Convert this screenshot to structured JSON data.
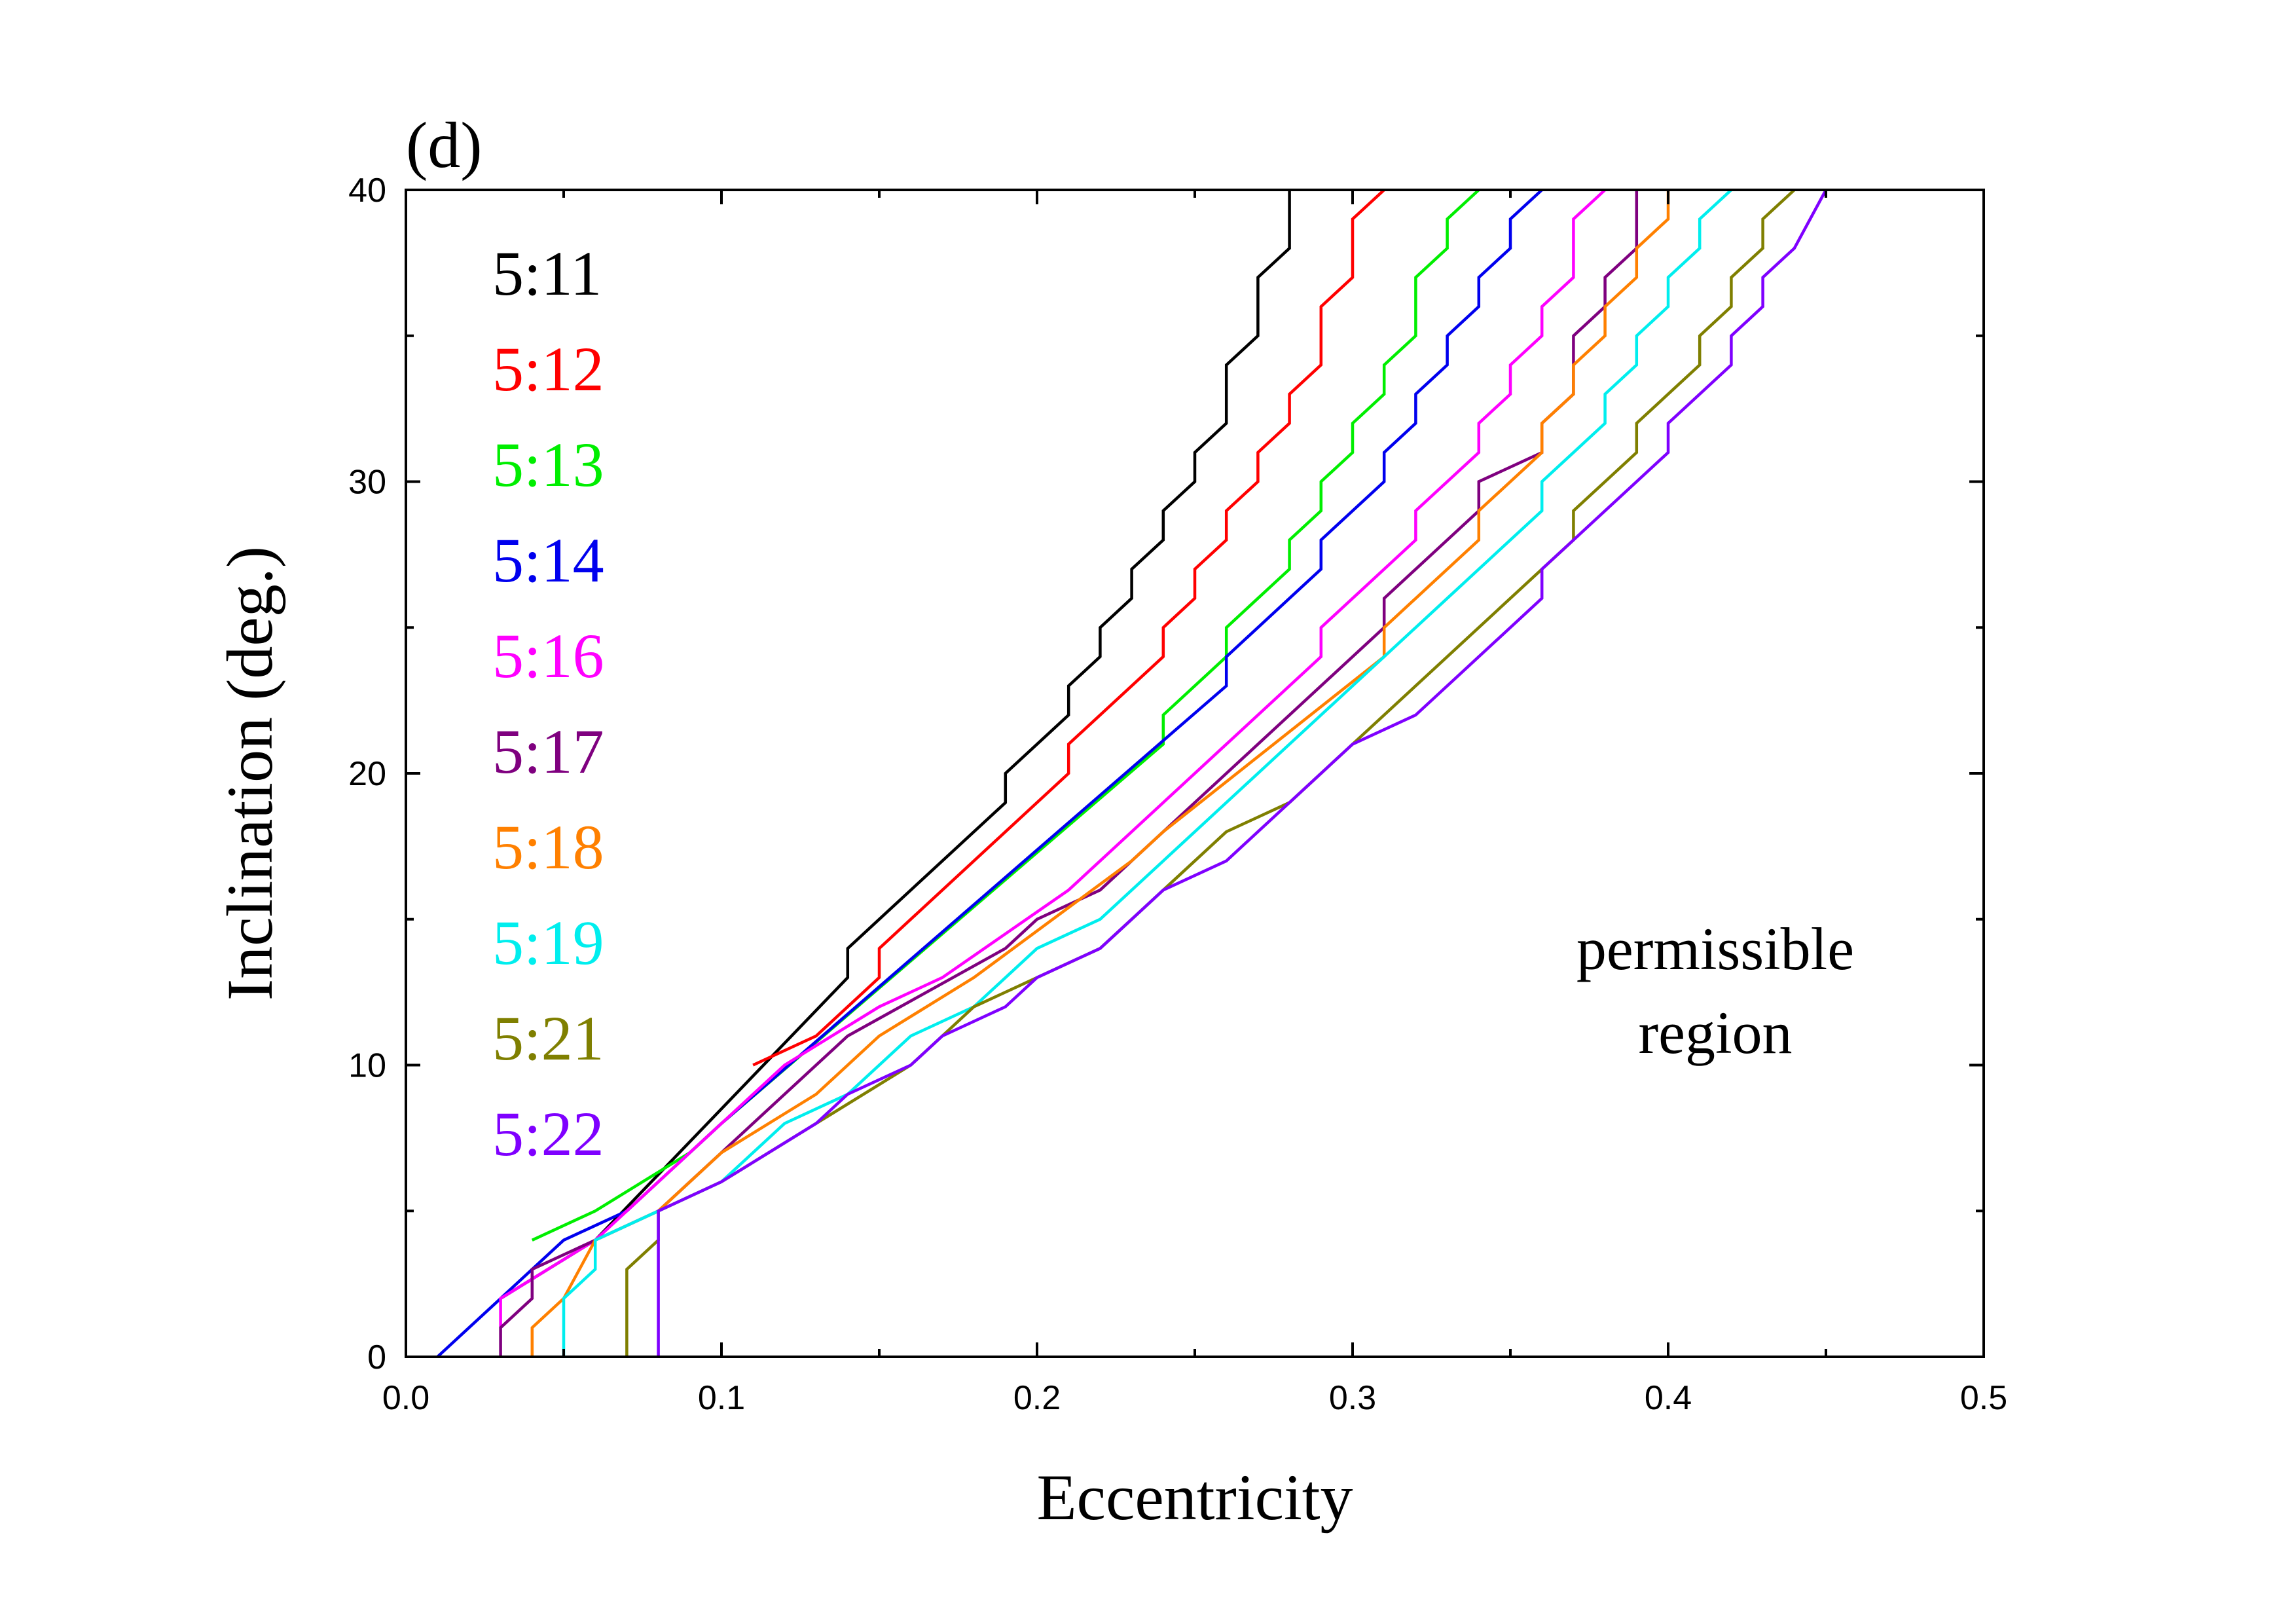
{
  "chart_data": {
    "type": "line",
    "panel_label": "(d)",
    "xlabel": "Eccentricity",
    "ylabel": "Inclination (deg.)",
    "xlim": [
      0.0,
      0.5
    ],
    "ylim": [
      0,
      40
    ],
    "xticks": [
      "0.0",
      "0.1",
      "0.2",
      "0.3",
      "0.4",
      "0.5"
    ],
    "yticks": [
      "0",
      "10",
      "20",
      "30",
      "40"
    ],
    "annotation": [
      "permissible",
      "region"
    ],
    "legend_position": "top-left",
    "series": [
      {
        "name": "5:11",
        "color": "#000000",
        "points": [
          [
            0.03,
            2
          ],
          [
            0.06,
            4
          ],
          [
            0.14,
            13
          ],
          [
            0.14,
            14
          ],
          [
            0.19,
            19
          ],
          [
            0.19,
            20
          ],
          [
            0.21,
            22
          ],
          [
            0.21,
            23
          ],
          [
            0.22,
            24
          ],
          [
            0.22,
            25
          ],
          [
            0.23,
            26
          ],
          [
            0.23,
            27
          ],
          [
            0.24,
            28
          ],
          [
            0.24,
            29
          ],
          [
            0.25,
            30
          ],
          [
            0.25,
            31
          ],
          [
            0.26,
            32
          ],
          [
            0.26,
            34
          ],
          [
            0.27,
            35
          ],
          [
            0.27,
            37
          ],
          [
            0.28,
            38
          ],
          [
            0.28,
            40
          ]
        ]
      },
      {
        "name": "5:12",
        "color": "#ff0000",
        "points": [
          [
            0.11,
            10
          ],
          [
            0.13,
            11
          ],
          [
            0.15,
            13
          ],
          [
            0.15,
            14
          ],
          [
            0.21,
            20
          ],
          [
            0.21,
            21
          ],
          [
            0.24,
            24
          ],
          [
            0.24,
            25
          ],
          [
            0.25,
            26
          ],
          [
            0.25,
            27
          ],
          [
            0.26,
            28
          ],
          [
            0.26,
            29
          ],
          [
            0.27,
            30
          ],
          [
            0.27,
            31
          ],
          [
            0.28,
            32
          ],
          [
            0.28,
            33
          ],
          [
            0.29,
            34
          ],
          [
            0.29,
            36
          ],
          [
            0.3,
            37
          ],
          [
            0.3,
            39
          ],
          [
            0.31,
            40
          ]
        ]
      },
      {
        "name": "5:13",
        "color": "#00ee00",
        "points": [
          [
            0.04,
            4
          ],
          [
            0.06,
            5
          ],
          [
            0.09,
            7
          ],
          [
            0.1,
            8
          ],
          [
            0.24,
            21
          ],
          [
            0.24,
            22
          ],
          [
            0.26,
            24
          ],
          [
            0.26,
            25
          ],
          [
            0.28,
            27
          ],
          [
            0.28,
            28
          ],
          [
            0.29,
            29
          ],
          [
            0.29,
            30
          ],
          [
            0.3,
            31
          ],
          [
            0.3,
            32
          ],
          [
            0.31,
            33
          ],
          [
            0.31,
            34
          ],
          [
            0.32,
            35
          ],
          [
            0.32,
            37
          ],
          [
            0.33,
            38
          ],
          [
            0.33,
            39
          ],
          [
            0.34,
            40
          ]
        ]
      },
      {
        "name": "5:14",
        "color": "#0000ee",
        "points": [
          [
            0.01,
            0
          ],
          [
            0.05,
            4
          ],
          [
            0.07,
            5
          ],
          [
            0.1,
            8
          ],
          [
            0.26,
            23
          ],
          [
            0.26,
            24
          ],
          [
            0.29,
            27
          ],
          [
            0.29,
            28
          ],
          [
            0.31,
            30
          ],
          [
            0.31,
            31
          ],
          [
            0.32,
            32
          ],
          [
            0.32,
            33
          ],
          [
            0.33,
            34
          ],
          [
            0.33,
            35
          ],
          [
            0.34,
            36
          ],
          [
            0.34,
            37
          ],
          [
            0.35,
            38
          ],
          [
            0.35,
            39
          ],
          [
            0.36,
            40
          ]
        ]
      },
      {
        "name": "5:16",
        "color": "#ff00ff",
        "points": [
          [
            0.03,
            1
          ],
          [
            0.03,
            2
          ],
          [
            0.06,
            4
          ],
          [
            0.08,
            6
          ],
          [
            0.12,
            10
          ],
          [
            0.15,
            12
          ],
          [
            0.17,
            13
          ],
          [
            0.21,
            16
          ],
          [
            0.29,
            24
          ],
          [
            0.29,
            25
          ],
          [
            0.32,
            28
          ],
          [
            0.32,
            29
          ],
          [
            0.34,
            31
          ],
          [
            0.34,
            32
          ],
          [
            0.35,
            33
          ],
          [
            0.35,
            34
          ],
          [
            0.36,
            35
          ],
          [
            0.36,
            36
          ],
          [
            0.37,
            37
          ],
          [
            0.37,
            39
          ],
          [
            0.38,
            40
          ]
        ]
      },
      {
        "name": "5:17",
        "color": "#7f007f",
        "points": [
          [
            0.03,
            0
          ],
          [
            0.03,
            1
          ],
          [
            0.04,
            2
          ],
          [
            0.04,
            3
          ],
          [
            0.06,
            4
          ],
          [
            0.08,
            5
          ],
          [
            0.09,
            6
          ],
          [
            0.12,
            9
          ],
          [
            0.14,
            11
          ],
          [
            0.19,
            14
          ],
          [
            0.2,
            15
          ],
          [
            0.22,
            16
          ],
          [
            0.31,
            25
          ],
          [
            0.31,
            26
          ],
          [
            0.34,
            29
          ],
          [
            0.34,
            30
          ],
          [
            0.36,
            31
          ],
          [
            0.36,
            32
          ],
          [
            0.37,
            33
          ],
          [
            0.37,
            35
          ],
          [
            0.38,
            36
          ],
          [
            0.38,
            37
          ],
          [
            0.39,
            38
          ],
          [
            0.39,
            40
          ]
        ]
      },
      {
        "name": "5:18",
        "color": "#ff8000",
        "points": [
          [
            0.04,
            0
          ],
          [
            0.04,
            1
          ],
          [
            0.05,
            2
          ],
          [
            0.06,
            4
          ],
          [
            0.08,
            5
          ],
          [
            0.1,
            7
          ],
          [
            0.13,
            9
          ],
          [
            0.15,
            11
          ],
          [
            0.18,
            13
          ],
          [
            0.23,
            17
          ],
          [
            0.24,
            18
          ],
          [
            0.31,
            24
          ],
          [
            0.31,
            25
          ],
          [
            0.34,
            28
          ],
          [
            0.34,
            29
          ],
          [
            0.36,
            31
          ],
          [
            0.36,
            32
          ],
          [
            0.37,
            33
          ],
          [
            0.37,
            34
          ],
          [
            0.38,
            35
          ],
          [
            0.38,
            36
          ],
          [
            0.39,
            37
          ],
          [
            0.39,
            38
          ],
          [
            0.4,
            39
          ],
          [
            0.4,
            40
          ]
        ]
      },
      {
        "name": "5:19",
        "color": "#00eeee",
        "points": [
          [
            0.05,
            0
          ],
          [
            0.05,
            2
          ],
          [
            0.06,
            3
          ],
          [
            0.06,
            4
          ],
          [
            0.08,
            5
          ],
          [
            0.1,
            6
          ],
          [
            0.12,
            8
          ],
          [
            0.14,
            9
          ],
          [
            0.16,
            11
          ],
          [
            0.18,
            12
          ],
          [
            0.2,
            14
          ],
          [
            0.22,
            15
          ],
          [
            0.25,
            18
          ],
          [
            0.33,
            26
          ],
          [
            0.36,
            29
          ],
          [
            0.36,
            30
          ],
          [
            0.38,
            32
          ],
          [
            0.38,
            33
          ],
          [
            0.39,
            34
          ],
          [
            0.39,
            35
          ],
          [
            0.4,
            36
          ],
          [
            0.4,
            37
          ],
          [
            0.41,
            38
          ],
          [
            0.41,
            39
          ],
          [
            0.42,
            40
          ]
        ]
      },
      {
        "name": "5:21",
        "color": "#7f7f00",
        "points": [
          [
            0.07,
            0
          ],
          [
            0.07,
            3
          ],
          [
            0.08,
            4
          ],
          [
            0.08,
            5
          ],
          [
            0.1,
            6
          ],
          [
            0.13,
            8
          ],
          [
            0.16,
            10
          ],
          [
            0.18,
            12
          ],
          [
            0.2,
            13
          ],
          [
            0.22,
            14
          ],
          [
            0.23,
            15
          ],
          [
            0.26,
            18
          ],
          [
            0.28,
            19
          ],
          [
            0.3,
            21
          ],
          [
            0.31,
            22
          ],
          [
            0.37,
            28
          ],
          [
            0.37,
            29
          ],
          [
            0.39,
            31
          ],
          [
            0.39,
            32
          ],
          [
            0.41,
            34
          ],
          [
            0.41,
            35
          ],
          [
            0.42,
            36
          ],
          [
            0.42,
            37
          ],
          [
            0.43,
            38
          ],
          [
            0.43,
            39
          ],
          [
            0.44,
            40
          ]
        ]
      },
      {
        "name": "5:22",
        "color": "#7f00ff",
        "points": [
          [
            0.08,
            0
          ],
          [
            0.08,
            5
          ],
          [
            0.1,
            6
          ],
          [
            0.13,
            8
          ],
          [
            0.14,
            9
          ],
          [
            0.16,
            10
          ],
          [
            0.17,
            11
          ],
          [
            0.19,
            12
          ],
          [
            0.2,
            13
          ],
          [
            0.22,
            14
          ],
          [
            0.23,
            15
          ],
          [
            0.24,
            16
          ],
          [
            0.26,
            17
          ],
          [
            0.3,
            21
          ],
          [
            0.32,
            22
          ],
          [
            0.36,
            26
          ],
          [
            0.36,
            27
          ],
          [
            0.37,
            28
          ],
          [
            0.39,
            30
          ],
          [
            0.4,
            31
          ],
          [
            0.4,
            32
          ],
          [
            0.42,
            34
          ],
          [
            0.42,
            35
          ],
          [
            0.43,
            36
          ],
          [
            0.43,
            37
          ],
          [
            0.44,
            38
          ],
          [
            0.45,
            40
          ]
        ]
      }
    ]
  }
}
